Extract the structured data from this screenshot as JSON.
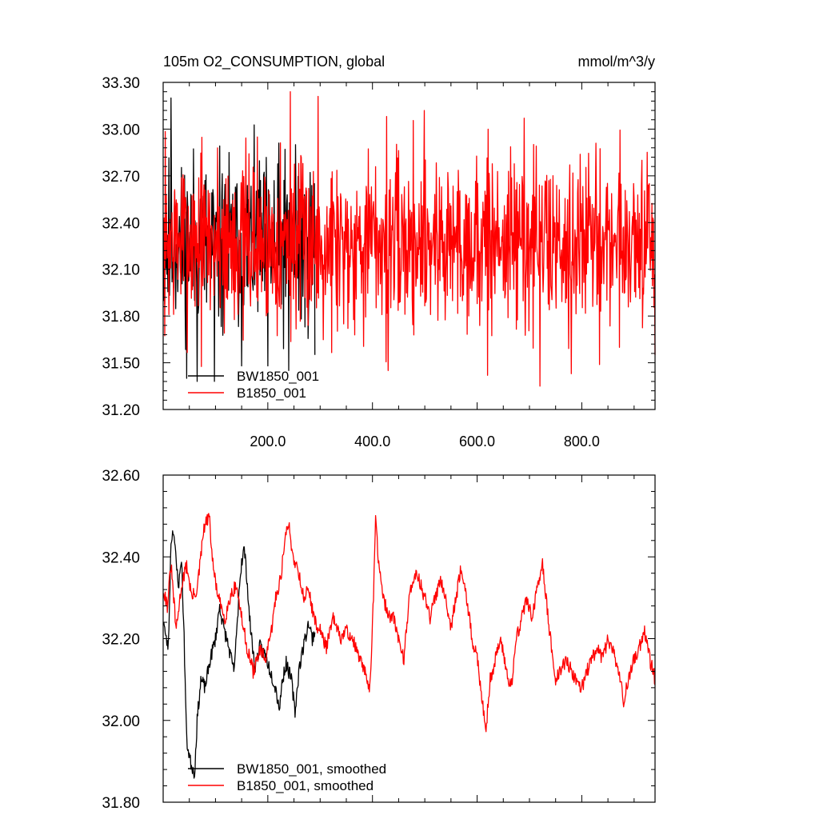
{
  "chart_data": [
    {
      "type": "line",
      "title": "105m O2_CONSUMPTION, global",
      "units": "mmol/m^3/y",
      "xlim": [
        0,
        940
      ],
      "ylim": [
        31.2,
        33.3
      ],
      "x_ticks": [
        200,
        400,
        600,
        800
      ],
      "x_tick_labels": [
        "200.0",
        "400.0",
        "600.0",
        "800.0"
      ],
      "y_ticks": [
        31.2,
        31.5,
        31.8,
        32.1,
        32.4,
        32.7,
        33.0,
        33.3
      ],
      "y_tick_labels": [
        "31.20",
        "31.50",
        "31.80",
        "32.10",
        "32.40",
        "32.70",
        "33.00",
        "33.30"
      ],
      "legend_position": "bottom-left",
      "series": [
        {
          "name": "BW1850_001",
          "color": "#000000",
          "x_range": [
            1,
            290
          ],
          "n": 290,
          "mean": 32.25,
          "spread": 0.28,
          "seed": 11,
          "anchors": [
            [
              15,
              33.2
            ],
            [
              22,
              32.6
            ],
            [
              45,
              31.4
            ],
            [
              65,
              31.38
            ],
            [
              98,
              31.38
            ],
            [
              150,
              31.48
            ],
            [
              200,
              31.48
            ],
            [
              240,
              31.45
            ],
            [
              253,
              32.9
            ],
            [
              290,
              31.55
            ]
          ]
        },
        {
          "name": "B1850_001",
          "color": "#ff0000",
          "x_range": [
            1,
            940
          ],
          "n": 940,
          "mean": 32.28,
          "spread": 0.28,
          "seed": 7,
          "anchors": [
            [
              243,
              33.24
            ],
            [
              296,
              33.21
            ],
            [
              430,
              31.45
            ],
            [
              499,
              33.12
            ],
            [
              620,
              31.42
            ],
            [
              690,
              33.07
            ],
            [
              720,
              31.35
            ],
            [
              780,
              31.43
            ],
            [
              915,
              32.8
            ],
            [
              940,
              31.55
            ]
          ]
        }
      ]
    },
    {
      "type": "line",
      "title": "",
      "units": "",
      "xlim": [
        0,
        940
      ],
      "ylim": [
        31.8,
        32.6
      ],
      "x_ticks": [
        200,
        400,
        600,
        800
      ],
      "x_tick_labels": [],
      "y_ticks": [
        31.8,
        32.0,
        32.2,
        32.4,
        32.6
      ],
      "y_tick_labels": [
        "31.80",
        "32.00",
        "32.20",
        "32.40",
        "32.60"
      ],
      "legend_position": "bottom-left",
      "series": [
        {
          "name": "BW1850_001, smoothed",
          "color": "#000000",
          "seed": 23,
          "x_range": [
            1,
            290
          ],
          "path": [
            [
              1,
              32.25
            ],
            [
              5,
              32.2
            ],
            [
              10,
              32.18
            ],
            [
              15,
              32.44
            ],
            [
              20,
              32.47
            ],
            [
              25,
              32.38
            ],
            [
              30,
              32.33
            ],
            [
              35,
              32.4
            ],
            [
              40,
              32.2
            ],
            [
              45,
              31.95
            ],
            [
              52,
              31.9
            ],
            [
              60,
              31.87
            ],
            [
              65,
              32.0
            ],
            [
              72,
              32.1
            ],
            [
              80,
              32.08
            ],
            [
              90,
              32.15
            ],
            [
              100,
              32.2
            ],
            [
              108,
              32.28
            ],
            [
              115,
              32.23
            ],
            [
              125,
              32.18
            ],
            [
              135,
              32.12
            ],
            [
              140,
              32.2
            ],
            [
              145,
              32.32
            ],
            [
              150,
              32.39
            ],
            [
              155,
              32.42
            ],
            [
              160,
              32.35
            ],
            [
              165,
              32.25
            ],
            [
              175,
              32.13
            ],
            [
              185,
              32.18
            ],
            [
              195,
              32.16
            ],
            [
              205,
              32.12
            ],
            [
              215,
              32.08
            ],
            [
              222,
              32.03
            ],
            [
              228,
              32.1
            ],
            [
              235,
              32.14
            ],
            [
              245,
              32.1
            ],
            [
              252,
              32.02
            ],
            [
              260,
              32.13
            ],
            [
              268,
              32.18
            ],
            [
              278,
              32.24
            ],
            [
              285,
              32.2
            ],
            [
              290,
              32.22
            ]
          ]
        },
        {
          "name": "B1850_001, smoothed",
          "color": "#ff0000",
          "seed": 31,
          "x_range": [
            1,
            940
          ],
          "path": [
            [
              1,
              32.32
            ],
            [
              8,
              32.28
            ],
            [
              15,
              32.38
            ],
            [
              25,
              32.22
            ],
            [
              35,
              32.33
            ],
            [
              45,
              32.38
            ],
            [
              55,
              32.3
            ],
            [
              65,
              32.32
            ],
            [
              78,
              32.47
            ],
            [
              88,
              32.5
            ],
            [
              95,
              32.38
            ],
            [
              105,
              32.3
            ],
            [
              118,
              32.25
            ],
            [
              130,
              32.31
            ],
            [
              140,
              32.33
            ],
            [
              150,
              32.25
            ],
            [
              160,
              32.18
            ],
            [
              172,
              32.12
            ],
            [
              185,
              32.17
            ],
            [
              195,
              32.15
            ],
            [
              205,
              32.2
            ],
            [
              215,
              32.3
            ],
            [
              225,
              32.35
            ],
            [
              232,
              32.44
            ],
            [
              240,
              32.48
            ],
            [
              248,
              32.4
            ],
            [
              258,
              32.37
            ],
            [
              268,
              32.3
            ],
            [
              278,
              32.32
            ],
            [
              290,
              32.24
            ],
            [
              300,
              32.22
            ],
            [
              312,
              32.18
            ],
            [
              325,
              32.25
            ],
            [
              338,
              32.2
            ],
            [
              350,
              32.22
            ],
            [
              362,
              32.2
            ],
            [
              375,
              32.15
            ],
            [
              385,
              32.12
            ],
            [
              395,
              32.08
            ],
            [
              402,
              32.3
            ],
            [
              406,
              32.5
            ],
            [
              412,
              32.38
            ],
            [
              420,
              32.3
            ],
            [
              430,
              32.26
            ],
            [
              440,
              32.25
            ],
            [
              450,
              32.2
            ],
            [
              460,
              32.15
            ],
            [
              470,
              32.3
            ],
            [
              480,
              32.36
            ],
            [
              490,
              32.34
            ],
            [
              500,
              32.3
            ],
            [
              510,
              32.25
            ],
            [
              520,
              32.3
            ],
            [
              530,
              32.35
            ],
            [
              540,
              32.3
            ],
            [
              550,
              32.23
            ],
            [
              560,
              32.3
            ],
            [
              570,
              32.38
            ],
            [
              580,
              32.3
            ],
            [
              590,
              32.2
            ],
            [
              600,
              32.15
            ],
            [
              610,
              32.05
            ],
            [
              617,
              31.98
            ],
            [
              625,
              32.1
            ],
            [
              635,
              32.15
            ],
            [
              645,
              32.2
            ],
            [
              655,
              32.13
            ],
            [
              665,
              32.08
            ],
            [
              675,
              32.2
            ],
            [
              685,
              32.25
            ],
            [
              695,
              32.3
            ],
            [
              705,
              32.25
            ],
            [
              715,
              32.32
            ],
            [
              725,
              32.38
            ],
            [
              732,
              32.3
            ],
            [
              740,
              32.2
            ],
            [
              750,
              32.1
            ],
            [
              760,
              32.12
            ],
            [
              770,
              32.15
            ],
            [
              780,
              32.12
            ],
            [
              790,
              32.1
            ],
            [
              800,
              32.08
            ],
            [
              810,
              32.12
            ],
            [
              820,
              32.15
            ],
            [
              830,
              32.18
            ],
            [
              840,
              32.15
            ],
            [
              850,
              32.2
            ],
            [
              860,
              32.17
            ],
            [
              870,
              32.12
            ],
            [
              880,
              32.05
            ],
            [
              890,
              32.1
            ],
            [
              900,
              32.15
            ],
            [
              910,
              32.18
            ],
            [
              920,
              32.22
            ],
            [
              930,
              32.15
            ],
            [
              940,
              32.1
            ]
          ]
        }
      ]
    }
  ]
}
